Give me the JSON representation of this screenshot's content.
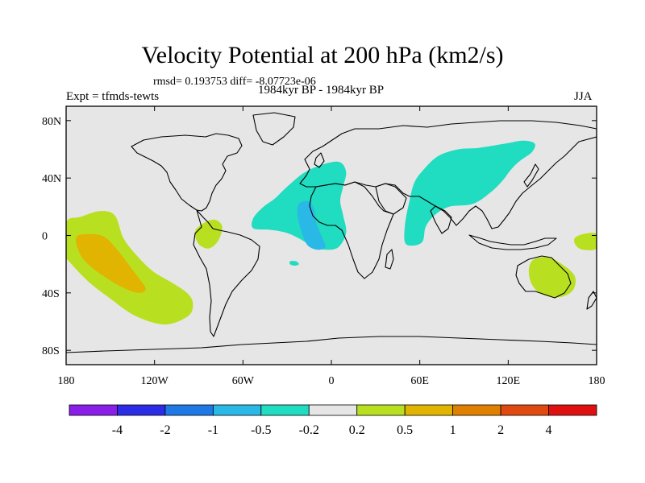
{
  "title": "Velocity Potential at 200 hPa (km2/s)",
  "stats": "rmsd= 0.193753 diff= -8.07723e-06",
  "expt": "Expt = tfmds-tewts",
  "period": "1984kyr BP - 1984kyr BP",
  "season": "JJA",
  "chart_data": {
    "type": "heatmap",
    "projection": "cylindrical equidistant",
    "title": "Velocity Potential at 200 hPa (km2/s)",
    "x_ticks": [
      {
        "value": -180,
        "label": "180"
      },
      {
        "value": -120,
        "label": "120W"
      },
      {
        "value": -60,
        "label": "60W"
      },
      {
        "value": 0,
        "label": "0"
      },
      {
        "value": 60,
        "label": "60E"
      },
      {
        "value": 120,
        "label": "120E"
      },
      {
        "value": 180,
        "label": "180"
      }
    ],
    "y_ticks": [
      {
        "value": 80,
        "label": "80N"
      },
      {
        "value": 40,
        "label": "40N"
      },
      {
        "value": 0,
        "label": "0"
      },
      {
        "value": -40,
        "label": "40S"
      },
      {
        "value": -80,
        "label": "80S"
      }
    ],
    "xlim": [
      -180,
      180
    ],
    "ylim": [
      -90,
      90
    ],
    "background_color": "#e6e6e6",
    "colorbar": {
      "colors": [
        "#8a1ee8",
        "#2c2ce6",
        "#1e78e6",
        "#2ab8e6",
        "#20dcc0",
        "#e6e6e6",
        "#b8e020",
        "#e0b400",
        "#e08000",
        "#e04a10",
        "#e01010"
      ],
      "labels": [
        "-4",
        "-2",
        "-1",
        "-0.5",
        "-0.2",
        "0.2",
        "0.5",
        "1",
        "2",
        "4"
      ]
    },
    "regions": [
      {
        "name": "central-pacific-positive",
        "level": 0.2,
        "color": "#b8e020",
        "polygon": [
          [
            -180,
            9
          ],
          [
            -170,
            13
          ],
          [
            -157,
            17
          ],
          [
            -147,
            14
          ],
          [
            -141,
            -2
          ],
          [
            -132,
            -14
          ],
          [
            -121,
            -25
          ],
          [
            -108,
            -33
          ],
          [
            -98,
            -40
          ],
          [
            -94,
            -47
          ],
          [
            -97,
            -56
          ],
          [
            -113,
            -62
          ],
          [
            -133,
            -56
          ],
          [
            -150,
            -44
          ],
          [
            -165,
            -32
          ],
          [
            -178,
            -18
          ],
          [
            -180,
            -14
          ]
        ]
      },
      {
        "name": "central-pacific-strong",
        "level": 0.5,
        "color": "#e0b400",
        "polygon": [
          [
            -173,
            -1
          ],
          [
            -163,
            1
          ],
          [
            -154,
            -1
          ],
          [
            -147,
            -8
          ],
          [
            -140,
            -17
          ],
          [
            -132,
            -28
          ],
          [
            -126,
            -37
          ],
          [
            -131,
            -40
          ],
          [
            -142,
            -36
          ],
          [
            -155,
            -28
          ],
          [
            -165,
            -20
          ],
          [
            -171,
            -12
          ]
        ]
      },
      {
        "name": "colombia-positive",
        "level": 0.2,
        "color": "#b8e020",
        "polygon": [
          [
            -92,
            4
          ],
          [
            -86,
            9
          ],
          [
            -79,
            11
          ],
          [
            -74,
            6
          ],
          [
            -77,
            -4
          ],
          [
            -83,
            -9
          ],
          [
            -89,
            -7
          ],
          [
            -92,
            -2
          ]
        ]
      },
      {
        "name": "west-pacific-positive",
        "level": 0.2,
        "color": "#b8e020",
        "polygon": [
          [
            180,
            1
          ],
          [
            171,
            1
          ],
          [
            165,
            -2
          ],
          [
            166,
            -7
          ],
          [
            171,
            -10
          ],
          [
            180,
            -9
          ]
        ]
      },
      {
        "name": "australia-positive",
        "level": 0.2,
        "color": "#b8e020",
        "polygon": [
          [
            137,
            -17
          ],
          [
            146,
            -15
          ],
          [
            155,
            -19
          ],
          [
            165,
            -28
          ],
          [
            164,
            -38
          ],
          [
            155,
            -43
          ],
          [
            143,
            -41
          ],
          [
            136,
            -34
          ],
          [
            134,
            -24
          ]
        ]
      },
      {
        "name": "atlantic-africa-negative",
        "level": -0.2,
        "color": "#20dcc0",
        "polygon": [
          [
            -38,
            26
          ],
          [
            -30,
            34
          ],
          [
            -18,
            44
          ],
          [
            -4,
            50
          ],
          [
            6,
            51
          ],
          [
            10,
            44
          ],
          [
            8,
            34
          ],
          [
            6,
            24
          ],
          [
            8,
            14
          ],
          [
            10,
            2
          ],
          [
            5,
            -8
          ],
          [
            -3,
            -10
          ],
          [
            -12,
            -8
          ],
          [
            -22,
            -2
          ],
          [
            -31,
            2
          ],
          [
            -42,
            4
          ],
          [
            -53,
            5
          ],
          [
            -53,
            12
          ],
          [
            -46,
            20
          ]
        ]
      },
      {
        "name": "atlantic-core-negative",
        "level": -0.5,
        "color": "#2ab8e6",
        "polygon": [
          [
            -22,
            22
          ],
          [
            -16,
            24
          ],
          [
            -12,
            19
          ],
          [
            -10,
            8
          ],
          [
            -6,
            -2
          ],
          [
            -4,
            -8
          ],
          [
            -9,
            -10
          ],
          [
            -16,
            -7
          ],
          [
            -20,
            2
          ],
          [
            -23,
            14
          ]
        ]
      },
      {
        "name": "asia-negative",
        "level": -0.2,
        "color": "#20dcc0",
        "polygon": [
          [
            61,
            44
          ],
          [
            72,
            55
          ],
          [
            86,
            60
          ],
          [
            100,
            61
          ],
          [
            118,
            64
          ],
          [
            130,
            66
          ],
          [
            138,
            64
          ],
          [
            136,
            58
          ],
          [
            128,
            52
          ],
          [
            122,
            46
          ],
          [
            116,
            38
          ],
          [
            108,
            30
          ],
          [
            96,
            22
          ],
          [
            80,
            20
          ],
          [
            70,
            14
          ],
          [
            64,
            6
          ],
          [
            62,
            -4
          ],
          [
            56,
            -7
          ],
          [
            50,
            -5
          ],
          [
            50,
            8
          ],
          [
            53,
            24
          ],
          [
            56,
            36
          ]
        ]
      },
      {
        "name": "brazil-coast-spot",
        "level": -0.2,
        "color": "#20dcc0",
        "polygon": [
          [
            -28,
            -18
          ],
          [
            -24,
            -18
          ],
          [
            -22,
            -20
          ],
          [
            -25,
            -21
          ],
          [
            -28,
            -20
          ]
        ]
      }
    ]
  }
}
